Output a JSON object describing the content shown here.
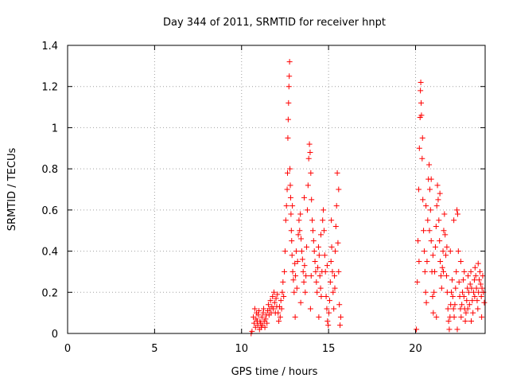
{
  "chart_data": {
    "type": "scatter",
    "title": "Day 344 of 2011, SRMTID for receiver hnpt",
    "xlabel": "GPS time / hours",
    "ylabel": "SRMTID / TECUs",
    "xlim": [
      0,
      24
    ],
    "ylim": [
      0,
      1.4
    ],
    "xticks": [
      0,
      5,
      10,
      15,
      20
    ],
    "yticks": [
      0,
      0.2,
      0.4,
      0.6,
      0.8,
      1,
      1.2,
      1.4
    ],
    "xtick_labels": [
      "0",
      "5",
      "10",
      "15",
      "20"
    ],
    "ytick_labels": [
      "0",
      "0.2",
      "0.4",
      "0.6",
      "0.8",
      "1",
      "1.2",
      "1.4"
    ],
    "grid": true,
    "marker": "+",
    "color": "#ff0000",
    "series": [
      {
        "points": [
          [
            10.55,
            0.0
          ],
          [
            10.6,
            0.01
          ],
          [
            10.68,
            0.08
          ],
          [
            10.72,
            0.05
          ],
          [
            10.76,
            0.12
          ],
          [
            10.8,
            0.03
          ],
          [
            10.83,
            0.07
          ],
          [
            10.86,
            0.1
          ],
          [
            10.9,
            0.06
          ],
          [
            10.93,
            0.04
          ],
          [
            10.96,
            0.09
          ],
          [
            11.0,
            0.11
          ],
          [
            11.03,
            0.02
          ],
          [
            11.06,
            0.06
          ],
          [
            11.1,
            0.05
          ],
          [
            11.13,
            0.03
          ],
          [
            11.17,
            0.08
          ],
          [
            11.2,
            0.04
          ],
          [
            11.24,
            0.1
          ],
          [
            11.27,
            0.12
          ],
          [
            11.3,
            0.06
          ],
          [
            11.34,
            0.03
          ],
          [
            11.38,
            0.07
          ],
          [
            11.42,
            0.09
          ],
          [
            11.46,
            0.05
          ],
          [
            11.5,
            0.11
          ],
          [
            11.54,
            0.14
          ],
          [
            11.58,
            0.09
          ],
          [
            11.62,
            0.12
          ],
          [
            11.66,
            0.16
          ],
          [
            11.7,
            0.1
          ],
          [
            11.74,
            0.13
          ],
          [
            11.78,
            0.18
          ],
          [
            11.82,
            0.12
          ],
          [
            11.86,
            0.2
          ],
          [
            11.9,
            0.15
          ],
          [
            11.94,
            0.1
          ],
          [
            11.98,
            0.17
          ],
          [
            12.02,
            0.13
          ],
          [
            12.06,
            0.19
          ],
          [
            12.1,
            0.1
          ],
          [
            12.14,
            0.06
          ],
          [
            12.18,
            0.13
          ],
          [
            12.22,
            0.08
          ],
          [
            12.26,
            0.16
          ],
          [
            12.3,
            0.12
          ],
          [
            12.34,
            0.2
          ],
          [
            12.38,
            0.25
          ],
          [
            12.42,
            0.18
          ],
          [
            12.46,
            0.3
          ],
          [
            12.5,
            0.4
          ],
          [
            12.54,
            0.55
          ],
          [
            12.58,
            0.62
          ],
          [
            12.62,
            0.7
          ],
          [
            12.64,
            0.78
          ],
          [
            12.66,
            0.95
          ],
          [
            12.68,
            1.04
          ],
          [
            12.7,
            1.12
          ],
          [
            12.72,
            1.2
          ],
          [
            12.74,
            1.25
          ],
          [
            12.76,
            1.32
          ],
          [
            12.78,
            0.8
          ],
          [
            12.8,
            0.72
          ],
          [
            12.82,
            0.66
          ],
          [
            12.84,
            0.58
          ],
          [
            12.86,
            0.5
          ],
          [
            12.88,
            0.45
          ],
          [
            12.9,
            0.38
          ],
          [
            12.94,
            0.3
          ],
          [
            12.98,
            0.26
          ],
          [
            13.02,
            0.2
          ],
          [
            13.06,
            0.34
          ],
          [
            13.1,
            0.28
          ],
          [
            13.14,
            0.4
          ],
          [
            13.18,
            0.22
          ],
          [
            13.22,
            0.35
          ],
          [
            13.26,
            0.48
          ],
          [
            13.3,
            0.55
          ],
          [
            13.34,
            0.5
          ],
          [
            13.38,
            0.58
          ],
          [
            13.42,
            0.46
          ],
          [
            13.46,
            0.4
          ],
          [
            13.5,
            0.36
          ],
          [
            13.54,
            0.3
          ],
          [
            13.58,
            0.25
          ],
          [
            13.62,
            0.33
          ],
          [
            13.66,
            0.2
          ],
          [
            13.7,
            0.28
          ],
          [
            13.74,
            0.42
          ],
          [
            13.78,
            0.6
          ],
          [
            13.82,
            0.72
          ],
          [
            13.86,
            0.85
          ],
          [
            13.9,
            0.92
          ],
          [
            13.94,
            0.88
          ],
          [
            13.98,
            0.78
          ],
          [
            14.02,
            0.65
          ],
          [
            14.06,
            0.55
          ],
          [
            14.1,
            0.5
          ],
          [
            14.14,
            0.45
          ],
          [
            14.18,
            0.4
          ],
          [
            14.22,
            0.35
          ],
          [
            14.26,
            0.3
          ],
          [
            14.3,
            0.25
          ],
          [
            14.34,
            0.2
          ],
          [
            14.38,
            0.32
          ],
          [
            14.42,
            0.42
          ],
          [
            14.46,
            0.38
          ],
          [
            14.5,
            0.28
          ],
          [
            14.54,
            0.22
          ],
          [
            14.58,
            0.18
          ],
          [
            14.62,
            0.3
          ],
          [
            14.66,
            0.55
          ],
          [
            14.7,
            0.6
          ],
          [
            14.74,
            0.5
          ],
          [
            14.78,
            0.38
          ],
          [
            14.82,
            0.3
          ],
          [
            14.86,
            0.18
          ],
          [
            14.9,
            0.12
          ],
          [
            14.94,
            0.06
          ],
          [
            14.98,
            0.04
          ],
          [
            15.02,
            0.1
          ],
          [
            15.06,
            0.16
          ],
          [
            15.1,
            0.25
          ],
          [
            15.14,
            0.35
          ],
          [
            15.18,
            0.42
          ],
          [
            15.22,
            0.3
          ],
          [
            15.26,
            0.2
          ],
          [
            15.3,
            0.12
          ],
          [
            15.34,
            0.28
          ],
          [
            15.38,
            0.4
          ],
          [
            15.42,
            0.52
          ],
          [
            15.46,
            0.62
          ],
          [
            15.5,
            0.78
          ],
          [
            15.54,
            0.44
          ],
          [
            15.58,
            0.3
          ],
          [
            15.62,
            0.14
          ],
          [
            15.66,
            0.04
          ],
          [
            15.7,
            0.08
          ],
          [
            13.08,
            0.08
          ],
          [
            13.4,
            0.15
          ],
          [
            13.96,
            0.12
          ],
          [
            14.44,
            0.08
          ],
          [
            14.92,
            0.33
          ],
          [
            15.36,
            0.22
          ],
          [
            12.92,
            0.62
          ],
          [
            13.6,
            0.66
          ],
          [
            14.0,
            0.28
          ],
          [
            14.56,
            0.48
          ],
          [
            15.16,
            0.55
          ],
          [
            15.58,
            0.7
          ],
          [
            20.05,
            0.02
          ],
          [
            20.1,
            0.25
          ],
          [
            20.14,
            0.45
          ],
          [
            20.18,
            0.7
          ],
          [
            20.22,
            0.9
          ],
          [
            20.26,
            1.05
          ],
          [
            20.28,
            1.18
          ],
          [
            20.3,
            1.22
          ],
          [
            20.32,
            1.12
          ],
          [
            20.34,
            1.06
          ],
          [
            20.38,
            0.85
          ],
          [
            20.42,
            0.65
          ],
          [
            20.46,
            0.5
          ],
          [
            20.5,
            0.4
          ],
          [
            20.54,
            0.3
          ],
          [
            20.58,
            0.2
          ],
          [
            20.62,
            0.15
          ],
          [
            20.66,
            0.35
          ],
          [
            20.7,
            0.55
          ],
          [
            20.74,
            0.75
          ],
          [
            20.78,
            0.82
          ],
          [
            20.82,
            0.7
          ],
          [
            20.86,
            0.6
          ],
          [
            20.9,
            0.45
          ],
          [
            20.94,
            0.3
          ],
          [
            20.98,
            0.18
          ],
          [
            21.02,
            0.1
          ],
          [
            21.06,
            0.2
          ],
          [
            21.1,
            0.3
          ],
          [
            21.14,
            0.42
          ],
          [
            21.18,
            0.52
          ],
          [
            21.22,
            0.62
          ],
          [
            21.26,
            0.72
          ],
          [
            21.3,
            0.65
          ],
          [
            21.34,
            0.55
          ],
          [
            21.38,
            0.45
          ],
          [
            21.42,
            0.35
          ],
          [
            21.46,
            0.28
          ],
          [
            21.5,
            0.22
          ],
          [
            21.54,
            0.32
          ],
          [
            21.58,
            0.4
          ],
          [
            21.62,
            0.5
          ],
          [
            21.66,
            0.58
          ],
          [
            21.7,
            0.48
          ],
          [
            21.74,
            0.38
          ],
          [
            21.78,
            0.28
          ],
          [
            21.82,
            0.2
          ],
          [
            21.86,
            0.12
          ],
          [
            21.9,
            0.06
          ],
          [
            21.94,
            0.02
          ],
          [
            21.98,
            0.08
          ],
          [
            22.02,
            0.14
          ],
          [
            22.06,
            0.2
          ],
          [
            22.1,
            0.26
          ],
          [
            22.14,
            0.18
          ],
          [
            22.18,
            0.12
          ],
          [
            22.22,
            0.08
          ],
          [
            22.26,
            0.14
          ],
          [
            22.3,
            0.22
          ],
          [
            22.34,
            0.3
          ],
          [
            22.38,
            0.6
          ],
          [
            22.42,
            0.58
          ],
          [
            22.46,
            0.4
          ],
          [
            22.5,
            0.25
          ],
          [
            22.54,
            0.18
          ],
          [
            22.58,
            0.12
          ],
          [
            22.62,
            0.08
          ],
          [
            22.66,
            0.14
          ],
          [
            22.7,
            0.2
          ],
          [
            22.74,
            0.26
          ],
          [
            22.78,
            0.18
          ],
          [
            22.82,
            0.12
          ],
          [
            22.86,
            0.06
          ],
          [
            22.9,
            0.1
          ],
          [
            22.94,
            0.16
          ],
          [
            22.98,
            0.22
          ],
          [
            23.02,
            0.28
          ],
          [
            23.06,
            0.2
          ],
          [
            23.1,
            0.14
          ],
          [
            23.14,
            0.24
          ],
          [
            23.18,
            0.3
          ],
          [
            23.22,
            0.22
          ],
          [
            23.26,
            0.16
          ],
          [
            23.3,
            0.1
          ],
          [
            23.34,
            0.2
          ],
          [
            23.38,
            0.26
          ],
          [
            23.42,
            0.32
          ],
          [
            23.46,
            0.28
          ],
          [
            23.5,
            0.22
          ],
          [
            23.54,
            0.16
          ],
          [
            23.58,
            0.12
          ],
          [
            23.62,
            0.2
          ],
          [
            23.66,
            0.26
          ],
          [
            23.7,
            0.3
          ],
          [
            23.74,
            0.24
          ],
          [
            23.78,
            0.18
          ],
          [
            23.82,
            0.22
          ],
          [
            23.86,
            0.28
          ],
          [
            23.9,
            0.2
          ],
          [
            23.95,
            0.15
          ],
          [
            20.2,
            0.35
          ],
          [
            20.6,
            0.62
          ],
          [
            21.2,
            0.08
          ],
          [
            21.6,
            0.3
          ],
          [
            22.0,
            0.4
          ],
          [
            22.4,
            0.02
          ],
          [
            22.8,
            0.3
          ],
          [
            23.2,
            0.06
          ],
          [
            23.6,
            0.34
          ],
          [
            20.9,
            0.75
          ],
          [
            21.4,
            0.68
          ],
          [
            21.8,
            0.42
          ],
          [
            22.2,
            0.55
          ],
          [
            22.6,
            0.35
          ],
          [
            23.0,
            0.12
          ],
          [
            23.4,
            0.18
          ],
          [
            23.8,
            0.08
          ],
          [
            20.4,
            0.95
          ],
          [
            20.8,
            0.5
          ],
          [
            21.0,
            0.38
          ]
        ]
      }
    ]
  }
}
